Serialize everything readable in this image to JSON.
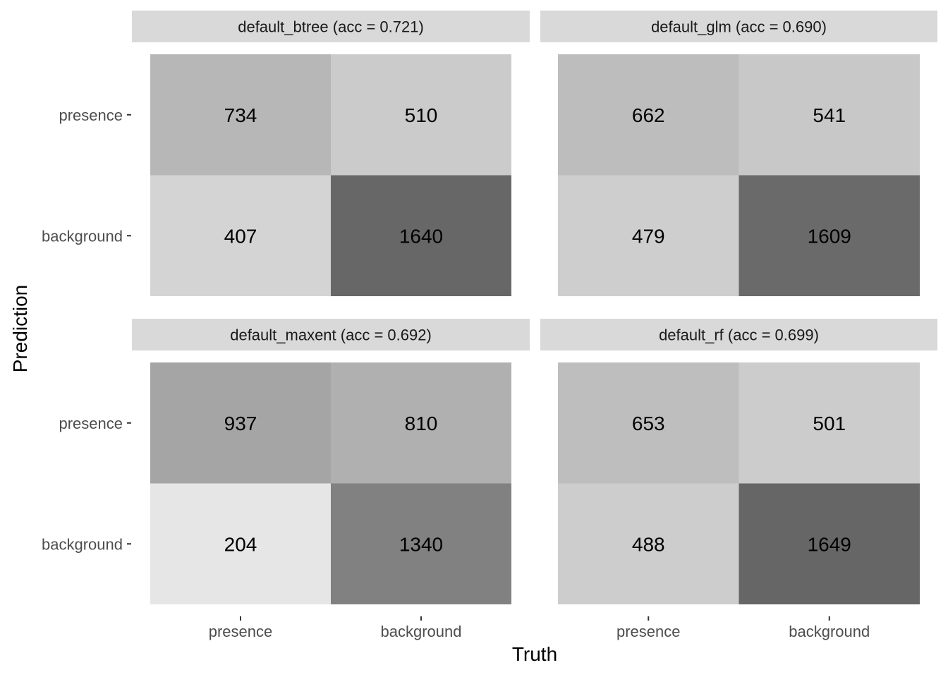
{
  "chart_data": {
    "type": "heatmap",
    "subtype": "faceted confusion matrix",
    "xlabel": "Truth",
    "ylabel": "Prediction",
    "x_categories": [
      "presence",
      "background"
    ],
    "y_categories": [
      "presence",
      "background"
    ],
    "colors": {
      "fill_low": "#e6e6e6",
      "fill_high": "#666666",
      "strip_bg": "#d9d9d9",
      "text": "#000000"
    },
    "grid": false,
    "legend": "none",
    "panels": [
      {
        "strip": "default_btree (acc = 0.721)",
        "cells": [
          {
            "prediction": "presence",
            "truth": "presence",
            "value": 734
          },
          {
            "prediction": "presence",
            "truth": "background",
            "value": 510
          },
          {
            "prediction": "background",
            "truth": "presence",
            "value": 407
          },
          {
            "prediction": "background",
            "truth": "background",
            "value": 1640
          }
        ]
      },
      {
        "strip": "default_glm (acc = 0.690)",
        "cells": [
          {
            "prediction": "presence",
            "truth": "presence",
            "value": 662
          },
          {
            "prediction": "presence",
            "truth": "background",
            "value": 541
          },
          {
            "prediction": "background",
            "truth": "presence",
            "value": 479
          },
          {
            "prediction": "background",
            "truth": "background",
            "value": 1609
          }
        ]
      },
      {
        "strip": "default_maxent (acc = 0.692)",
        "cells": [
          {
            "prediction": "presence",
            "truth": "presence",
            "value": 937
          },
          {
            "prediction": "presence",
            "truth": "background",
            "value": 810
          },
          {
            "prediction": "background",
            "truth": "presence",
            "value": 204
          },
          {
            "prediction": "background",
            "truth": "background",
            "value": 1340
          }
        ]
      },
      {
        "strip": "default_rf (acc = 0.699)",
        "cells": [
          {
            "prediction": "presence",
            "truth": "presence",
            "value": 653
          },
          {
            "prediction": "presence",
            "truth": "background",
            "value": 501
          },
          {
            "prediction": "background",
            "truth": "presence",
            "value": 488
          },
          {
            "prediction": "background",
            "truth": "background",
            "value": 1649
          }
        ]
      }
    ]
  }
}
